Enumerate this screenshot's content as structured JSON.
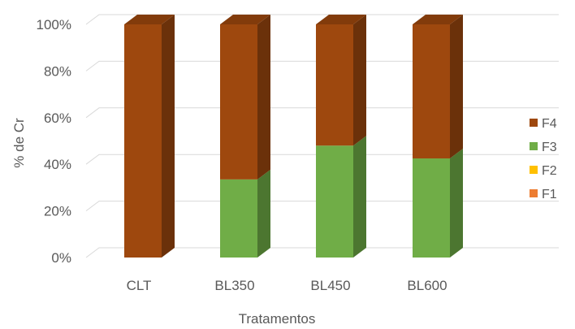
{
  "chart_data": {
    "type": "bar",
    "stacked": true,
    "percent_stacked": true,
    "three_d": true,
    "categories": [
      "CLT",
      "BL350",
      "BL450",
      "BL600"
    ],
    "series": [
      {
        "name": "F1",
        "values": [
          0,
          0,
          0,
          0
        ],
        "color": "#ED7D31"
      },
      {
        "name": "F2",
        "values": [
          0,
          0,
          0,
          0
        ],
        "color": "#FFC000"
      },
      {
        "name": "F3",
        "values": [
          0,
          33.5,
          48,
          42.5
        ],
        "color": "#70AD47"
      },
      {
        "name": "F4",
        "values": [
          100,
          66.5,
          52,
          57.5
        ],
        "color": "#9E480E"
      }
    ],
    "y_ticks": [
      "0%",
      "20%",
      "40%",
      "60%",
      "80%",
      "100%"
    ],
    "ylim": [
      0,
      100
    ],
    "xlabel": "Tratamentos",
    "ylabel": "% de Cr",
    "grid": true,
    "legend_position": "right"
  }
}
